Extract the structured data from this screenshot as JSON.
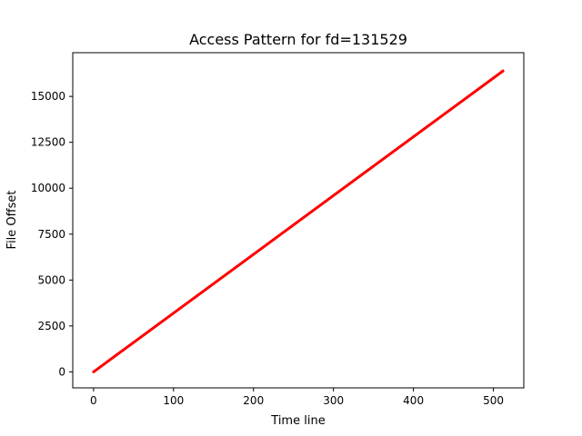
{
  "chart_data": {
    "type": "line",
    "title": "Access Pattern for fd=131529",
    "xlabel": "Time line",
    "ylabel": "File Offset",
    "xlim": [
      -26,
      538
    ],
    "ylim": [
      -870,
      17380
    ],
    "xticks": [
      0,
      100,
      200,
      300,
      400,
      500
    ],
    "yticks": [
      0,
      2500,
      5000,
      7500,
      10000,
      12500,
      15000
    ],
    "grid": false,
    "series": [
      {
        "color": "#ff0000",
        "x": [
          0,
          512
        ],
        "y": [
          0,
          16384
        ]
      }
    ]
  }
}
